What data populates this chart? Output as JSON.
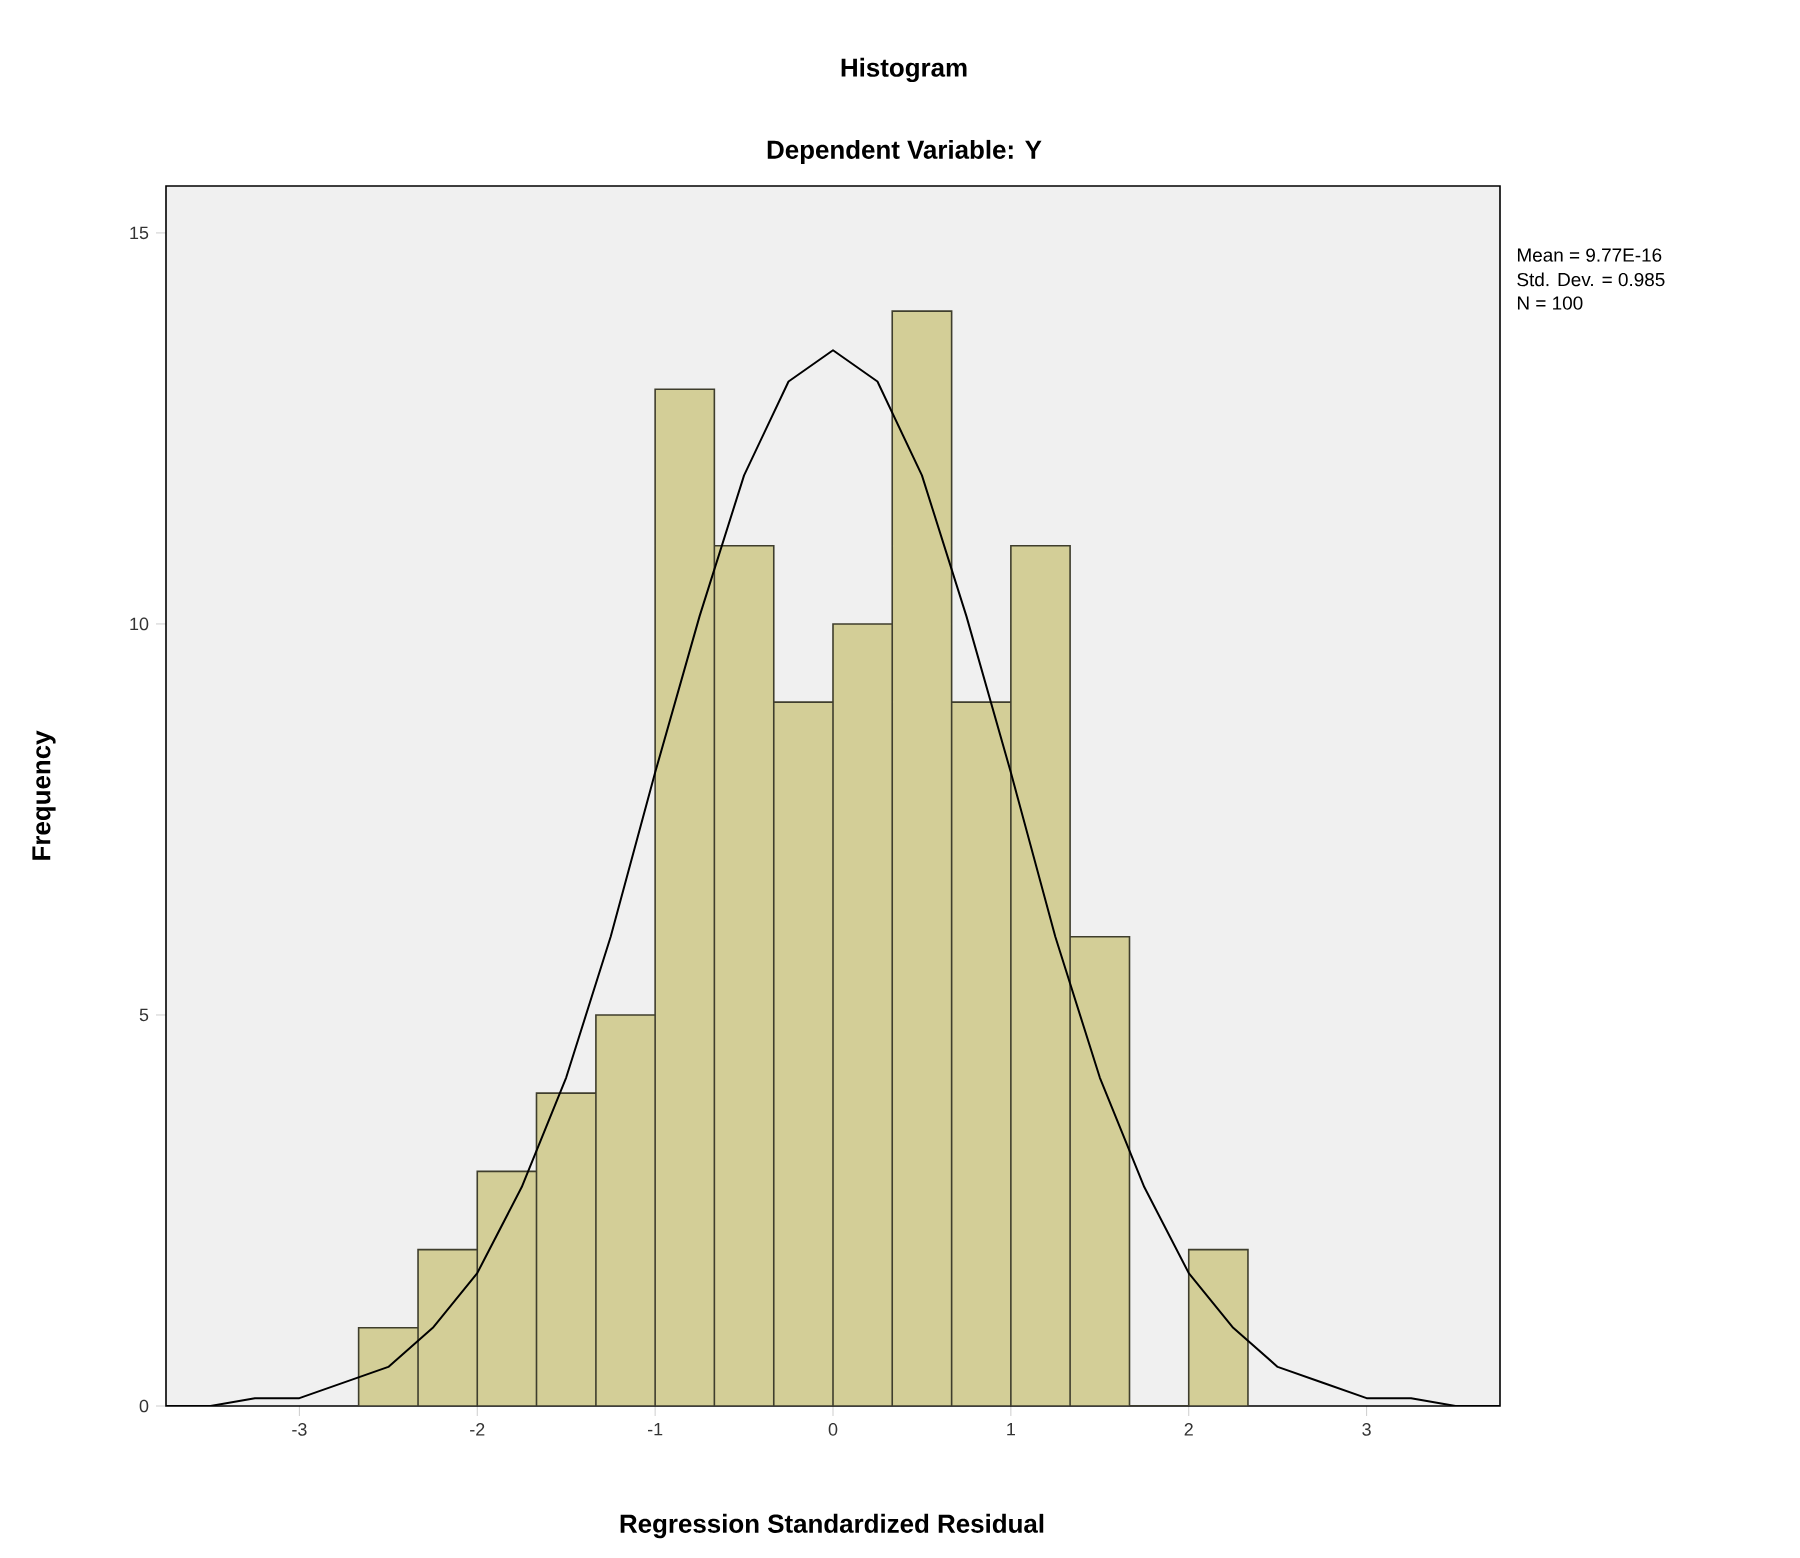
{
  "chart_data": {
    "type": "histogram",
    "title": "Histogram",
    "subtitle": "Dependent Variable: Y",
    "xlabel": "Regression Standardized Residual",
    "ylabel": "Frequency",
    "bins": [
      -2.667,
      -2.333,
      -2,
      -1.667,
      -1.333,
      -1,
      -0.667,
      -0.333,
      0,
      0.333,
      0.667,
      1,
      1.333,
      1.667,
      2,
      2.333
    ],
    "values": [
      1,
      2,
      3,
      4,
      5,
      13,
      11,
      9,
      10,
      14,
      9,
      11,
      6,
      0,
      2
    ],
    "color": "#d3ce97",
    "series": [
      {
        "type": "line",
        "color": "#000000",
        "x": [
          -3.75,
          -3.5,
          -3.25,
          -3,
          -2.75,
          -2.5,
          -2.25,
          -2,
          -1.75,
          -1.5,
          -1.25,
          -1,
          -0.75,
          -0.5,
          -0.25,
          0,
          0.25,
          0.5,
          0.75,
          1,
          1.25,
          1.5,
          1.75,
          2,
          2.25,
          2.5,
          2.75,
          3,
          3.25,
          3.5,
          3.75
        ],
        "values": [
          0,
          0,
          0.1,
          0.1,
          0.3,
          0.5,
          1,
          1.7,
          2.8,
          4.2,
          6,
          8.1,
          10.1,
          11.9,
          13.1,
          13.5,
          13.1,
          11.9,
          10.1,
          8.1,
          6,
          4.2,
          2.8,
          1.7,
          1,
          0.5,
          0.3,
          0.1,
          0.1,
          0,
          0
        ]
      }
    ],
    "xlim": [
      -3.75,
      3.75
    ],
    "ylim": [
      0,
      15.6
    ],
    "xticks": [
      -3,
      -2,
      -1,
      0,
      1,
      2,
      3
    ],
    "yticks": [
      0,
      5,
      10,
      15
    ],
    "grid": false,
    "annotations": [
      "Mean = 9.77E-16",
      "Std. Dev. = 0.985",
      "N = 100"
    ]
  }
}
